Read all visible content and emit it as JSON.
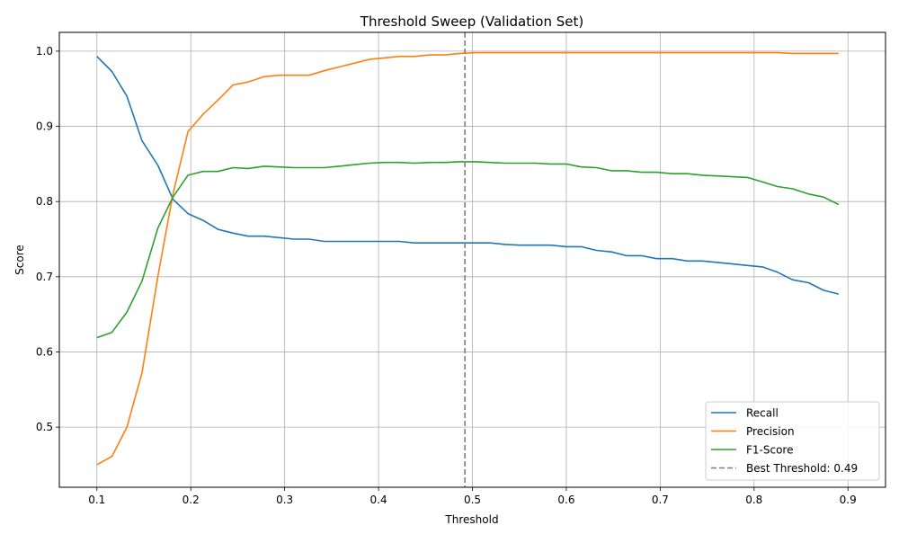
{
  "chart_data": {
    "type": "line",
    "title": "Threshold Sweep (Validation Set)",
    "xlabel": "Threshold",
    "ylabel": "Score",
    "xlim": [
      0.06,
      0.94
    ],
    "ylim": [
      0.42,
      1.025
    ],
    "xticks": [
      0.1,
      0.2,
      0.3,
      0.4,
      0.5,
      0.6,
      0.7,
      0.8,
      0.9
    ],
    "xtick_labels": [
      "0.1",
      "0.2",
      "0.3",
      "0.4",
      "0.5",
      "0.6",
      "0.7",
      "0.8",
      "0.9"
    ],
    "yticks": [
      0.5,
      0.6,
      0.7,
      0.8,
      0.9,
      1.0
    ],
    "ytick_labels": [
      "0.5",
      "0.6",
      "0.7",
      "0.8",
      "0.9",
      "1.0"
    ],
    "grid": true,
    "legend_position": "bottom-right",
    "x": [
      0.1,
      0.116,
      0.132,
      0.148,
      0.165,
      0.181,
      0.197,
      0.213,
      0.229,
      0.245,
      0.261,
      0.278,
      0.294,
      0.31,
      0.326,
      0.342,
      0.358,
      0.374,
      0.39,
      0.406,
      0.422,
      0.438,
      0.455,
      0.471,
      0.487,
      0.503,
      0.519,
      0.535,
      0.551,
      0.567,
      0.583,
      0.6,
      0.616,
      0.632,
      0.648,
      0.664,
      0.68,
      0.696,
      0.713,
      0.729,
      0.745,
      0.761,
      0.777,
      0.793,
      0.809,
      0.825,
      0.841,
      0.858,
      0.874,
      0.89
    ],
    "series": [
      {
        "name": "Recall",
        "color": "#1f77b4",
        "values": [
          0.993,
          0.973,
          0.94,
          0.881,
          0.848,
          0.803,
          0.784,
          0.775,
          0.763,
          0.758,
          0.754,
          0.754,
          0.752,
          0.75,
          0.75,
          0.747,
          0.747,
          0.747,
          0.747,
          0.747,
          0.747,
          0.745,
          0.745,
          0.745,
          0.745,
          0.745,
          0.745,
          0.743,
          0.742,
          0.742,
          0.742,
          0.74,
          0.74,
          0.735,
          0.733,
          0.728,
          0.728,
          0.724,
          0.724,
          0.721,
          0.721,
          0.719,
          0.717,
          0.715,
          0.713,
          0.706,
          0.696,
          0.692,
          0.682,
          0.677
        ]
      },
      {
        "name": "Precision",
        "color": "#ff7f0e",
        "values": [
          0.45,
          0.461,
          0.5,
          0.572,
          0.701,
          0.81,
          0.893,
          0.916,
          0.935,
          0.955,
          0.959,
          0.966,
          0.968,
          0.968,
          0.968,
          0.974,
          0.979,
          0.984,
          0.989,
          0.991,
          0.993,
          0.993,
          0.995,
          0.995,
          0.997,
          0.998,
          0.998,
          0.998,
          0.998,
          0.998,
          0.998,
          0.998,
          0.998,
          0.998,
          0.998,
          0.998,
          0.998,
          0.998,
          0.998,
          0.998,
          0.998,
          0.998,
          0.998,
          0.998,
          0.998,
          0.998,
          0.997,
          0.997,
          0.997,
          0.997
        ]
      },
      {
        "name": "F1-Score",
        "color": "#2ca02c",
        "values": [
          0.619,
          0.626,
          0.653,
          0.694,
          0.765,
          0.806,
          0.835,
          0.84,
          0.84,
          0.845,
          0.844,
          0.847,
          0.846,
          0.845,
          0.845,
          0.845,
          0.847,
          0.849,
          0.851,
          0.852,
          0.852,
          0.851,
          0.852,
          0.852,
          0.853,
          0.853,
          0.852,
          0.851,
          0.851,
          0.851,
          0.85,
          0.85,
          0.846,
          0.845,
          0.841,
          0.841,
          0.839,
          0.839,
          0.837,
          0.837,
          0.835,
          0.834,
          0.833,
          0.832,
          0.826,
          0.82,
          0.817,
          0.81,
          0.806,
          0.796
        ]
      }
    ],
    "reference_line": {
      "label": "Best Threshold: 0.49",
      "x": 0.492,
      "color": "#7f7f7f",
      "style": "dashed"
    }
  }
}
